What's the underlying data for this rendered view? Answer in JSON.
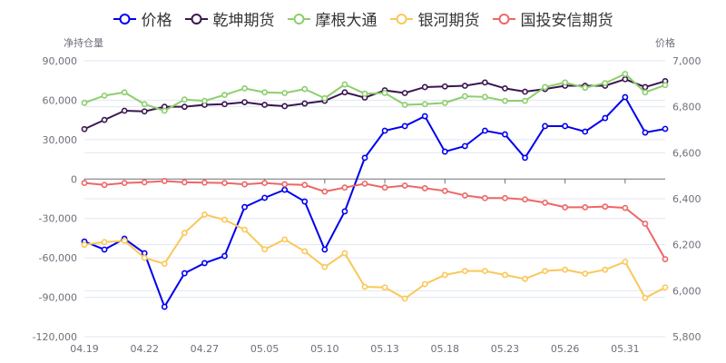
{
  "legend": [
    {
      "name": "价格",
      "color": "#0000ee"
    },
    {
      "name": "乾坤期货",
      "color": "#3a1650"
    },
    {
      "name": "摩根大通",
      "color": "#8cce6c"
    },
    {
      "name": "银河期货",
      "color": "#fac858"
    },
    {
      "name": "国投安信期货",
      "color": "#ee6666"
    }
  ],
  "axes": {
    "left_name": "净持仓量",
    "right_name": "价格",
    "left_ticks": [
      "90,000",
      "60,000",
      "30,000",
      "0",
      "-30,000",
      "-60,000",
      "-90,000",
      "-120,000"
    ],
    "right_ticks": [
      "7,000",
      "6,800",
      "6,600",
      "6,400",
      "6,200",
      "6,000",
      "5,800"
    ],
    "x_tick_labels": [
      "04.19",
      "04.22",
      "04.27",
      "05.05",
      "05.10",
      "05.13",
      "05.18",
      "05.23",
      "05.26",
      "05.31"
    ]
  },
  "chart_data": {
    "type": "line",
    "title": "",
    "xlabel": "",
    "ylabel": "净持仓量",
    "ylabel_right": "价格",
    "ylim": [
      -120000,
      90000
    ],
    "ylim_right": [
      5800,
      7000
    ],
    "grid": true,
    "legend_position": "top",
    "x_labeled": [
      "04.19",
      "04.22",
      "04.27",
      "05.05",
      "05.10",
      "05.13",
      "05.18",
      "05.23",
      "05.26",
      "05.31"
    ],
    "x_count": 30,
    "series": [
      {
        "name": "价格",
        "axis": "right",
        "color": "#0000ee",
        "values": [
          6214,
          6179,
          6226,
          6163,
          5930,
          6076,
          6120,
          6151,
          6364,
          6404,
          6439,
          6388,
          6179,
          6345,
          6578,
          6696,
          6716,
          6759,
          6605,
          6629,
          6696,
          6680,
          6578,
          6716,
          6716,
          6692,
          6751,
          6842,
          6688,
          6704
        ]
      },
      {
        "name": "乾坤期货",
        "axis": "left",
        "color": "#3a1650",
        "values": [
          38000,
          45000,
          52000,
          51500,
          55000,
          55000,
          56500,
          57000,
          58500,
          56500,
          55500,
          57500,
          59500,
          66000,
          62000,
          67500,
          65500,
          70000,
          70500,
          71000,
          73500,
          69000,
          66500,
          68500,
          71000,
          71000,
          71000,
          76000,
          70000,
          74500
        ]
      },
      {
        "name": "摩根大通",
        "axis": "left",
        "color": "#8cce6c",
        "values": [
          58000,
          63500,
          66000,
          57000,
          52000,
          60500,
          59500,
          64000,
          69000,
          66000,
          65500,
          68500,
          61500,
          72000,
          65000,
          65500,
          56500,
          57000,
          58000,
          63000,
          62500,
          59500,
          59500,
          70000,
          73500,
          69500,
          73000,
          80000,
          66000,
          71500
        ]
      },
      {
        "name": "银河期货",
        "axis": "left",
        "color": "#fac858",
        "values": [
          -50000,
          -48000,
          -47000,
          -60000,
          -64500,
          -41000,
          -27000,
          -31000,
          -38500,
          -53500,
          -46000,
          -55000,
          -67000,
          -56500,
          -82000,
          -82500,
          -91000,
          -80000,
          -73000,
          -70000,
          -70000,
          -73000,
          -76000,
          -70000,
          -69000,
          -72000,
          -69000,
          -63000,
          -90500,
          -82500
        ]
      },
      {
        "name": "国投安信期货",
        "axis": "left",
        "color": "#ee6666",
        "values": [
          -3000,
          -4500,
          -3000,
          -2500,
          -1500,
          -2500,
          -2700,
          -3000,
          -4000,
          -3000,
          -4000,
          -4500,
          -9500,
          -6500,
          -3500,
          -6500,
          -5000,
          -7000,
          -9000,
          -12500,
          -14500,
          -14500,
          -15500,
          -18000,
          -21500,
          -21500,
          -21000,
          -22000,
          -34000,
          -61000
        ]
      }
    ]
  }
}
